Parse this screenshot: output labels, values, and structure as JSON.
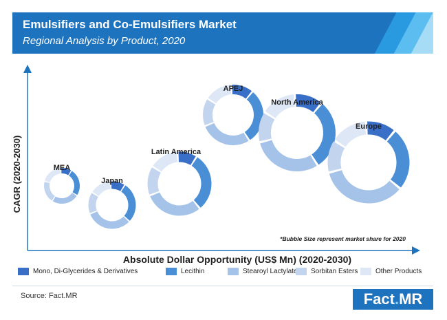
{
  "header": {
    "title": "Emulsifiers and Co-Emulsifiers Market",
    "subtitle": "Regional Analysis by Product, 2020"
  },
  "colors": {
    "header_bg": "#1e73be",
    "stripes": [
      "#2a9ae0",
      "#5bbdf0",
      "#a7dcf7"
    ],
    "segments": [
      "#3a6fc7",
      "#4a8ed6",
      "#a5c3e8",
      "#c3d5ee",
      "#dde7f5"
    ]
  },
  "chart_data": {
    "type": "bubble-donut",
    "xlabel": "Absolute Dollar Opportunity (US$ Mn) (2020-2030)",
    "ylabel": "CAGR (2020-2030)",
    "note": "*Bubble Size represent market share for 2020",
    "categories": [
      "Mono, Di-Glycerides & Derivatives",
      "Lecithin",
      "Stearoyl Lactylates",
      "Sorbitan Esters",
      "Other Products"
    ],
    "regions": [
      {
        "name": "MEA",
        "shares": [
          10,
          25,
          25,
          20,
          20
        ]
      },
      {
        "name": "Japan",
        "shares": [
          10,
          28,
          32,
          15,
          15
        ]
      },
      {
        "name": "Latin America",
        "shares": [
          10,
          30,
          30,
          15,
          15
        ]
      },
      {
        "name": "APEJ",
        "shares": [
          12,
          30,
          28,
          15,
          15
        ]
      },
      {
        "name": "North America",
        "shares": [
          12,
          30,
          30,
          13,
          15
        ]
      },
      {
        "name": "Europe",
        "shares": [
          12,
          25,
          35,
          13,
          15
        ]
      }
    ]
  },
  "legend": {
    "items": [
      "Mono, Di-Glycerides & Derivatives",
      "Lecithin",
      "Stearoyl Lactylates",
      "Sorbitan Esters",
      "Other Products"
    ]
  },
  "footer": {
    "source": "Source: Fact.MR",
    "logo_left": "Fact",
    "logo_dot": ".",
    "logo_right": "MR"
  }
}
